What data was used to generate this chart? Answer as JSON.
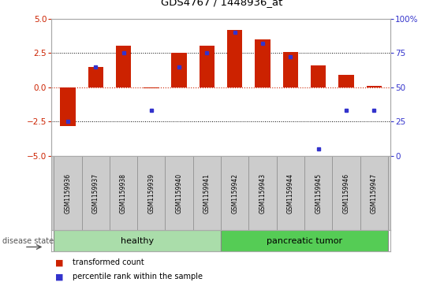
{
  "title": "GDS4767 / 1448936_at",
  "samples": [
    "GSM1159936",
    "GSM1159937",
    "GSM1159938",
    "GSM1159939",
    "GSM1159940",
    "GSM1159941",
    "GSM1159942",
    "GSM1159943",
    "GSM1159944",
    "GSM1159945",
    "GSM1159946",
    "GSM1159947"
  ],
  "transformed_count": [
    -2.8,
    1.5,
    3.0,
    -0.05,
    2.5,
    3.0,
    4.2,
    3.5,
    2.55,
    1.6,
    0.9,
    0.1
  ],
  "percentile_rank": [
    25,
    65,
    75,
    33,
    65,
    75,
    90,
    82,
    72,
    5,
    33,
    33
  ],
  "healthy_count": 6,
  "tumor_count": 6,
  "ylim": [
    -5,
    5
  ],
  "y2lim": [
    0,
    100
  ],
  "yticks": [
    -5,
    -2.5,
    0,
    2.5,
    5
  ],
  "y2ticks": [
    0,
    25,
    50,
    75,
    100
  ],
  "hlines_dotted": [
    -2.5,
    2.5
  ],
  "hline_red": 0,
  "bar_color": "#CC2200",
  "dot_color": "#3333CC",
  "bar_width": 0.55,
  "disease_state_label": "disease state",
  "healthy_label": "healthy",
  "tumor_label": "pancreatic tumor",
  "healthy_color": "#aaddaa",
  "tumor_color": "#55cc55",
  "strip_color": "#cccccc",
  "legend_entries": [
    "transformed count",
    "percentile rank within the sample"
  ],
  "bg_color": "#ffffff"
}
